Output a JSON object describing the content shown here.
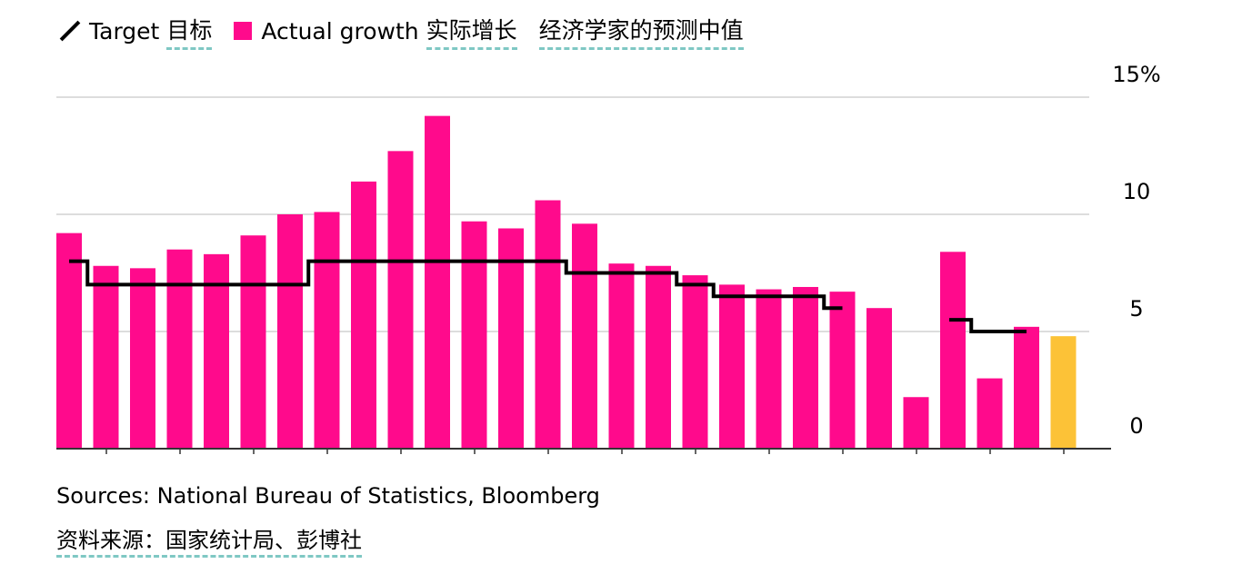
{
  "legend": {
    "target_en": "Target",
    "target_zh": "目标",
    "actual_en": "Actual growth",
    "actual_zh": "实际增长",
    "median_zh": "经济学家的预测中值"
  },
  "footer": {
    "sources_en": "Sources: National Bureau of Statistics, Bloomberg",
    "sources_zh": "资料来源：国家统计局、彭博社"
  },
  "colors": {
    "actual": "#ff0a8c",
    "forecast": "#fcc237",
    "target": "#000000",
    "grid": "#dddddd",
    "axis": "#333333"
  },
  "chart_data": {
    "type": "bar",
    "y_ticks": [
      "15%",
      "10",
      "5",
      "0"
    ],
    "y_tick_values": [
      15,
      10,
      5,
      0
    ],
    "ylim": [
      0,
      15
    ],
    "grid": true,
    "legend_position": "top-left",
    "series": [
      {
        "name": "Actual growth 实际增长",
        "values": [
          9.2,
          7.8,
          7.7,
          8.5,
          8.3,
          9.1,
          10.0,
          10.1,
          11.4,
          12.7,
          14.2,
          9.7,
          9.4,
          10.6,
          9.6,
          7.9,
          7.8,
          7.4,
          7.0,
          6.8,
          6.9,
          6.7,
          6.0,
          2.2,
          8.4,
          3.0,
          5.2
        ]
      },
      {
        "name": "经济学家的预测中值",
        "values": [
          4.8
        ]
      },
      {
        "name": "Target 目标",
        "segments": [
          {
            "from": 0,
            "to": 1,
            "value": 8.0
          },
          {
            "from": 1,
            "to": 7,
            "value": 7.0
          },
          {
            "from": 7,
            "to": 14,
            "value": 8.0
          },
          {
            "from": 14,
            "to": 17,
            "value": 7.5
          },
          {
            "from": 17,
            "to": 18,
            "value": 7.0
          },
          {
            "from": 18,
            "to": 21,
            "value": 6.5
          },
          {
            "from": 21,
            "to": 22,
            "value": 6.0
          },
          {
            "from": 24,
            "to": 25,
            "value": 5.5
          },
          {
            "from": 25,
            "to": 27,
            "value": 5.0
          }
        ]
      }
    ]
  }
}
